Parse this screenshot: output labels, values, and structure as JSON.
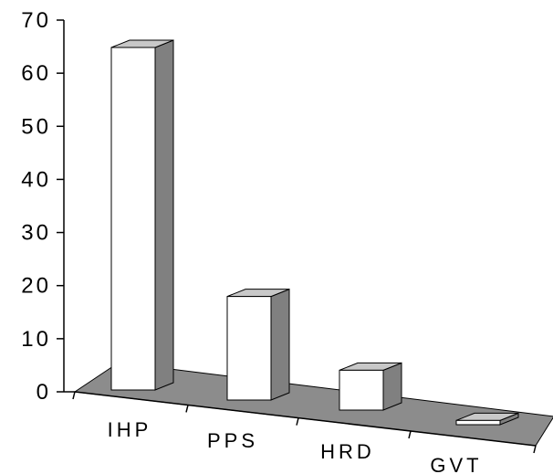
{
  "chart_data": {
    "type": "bar",
    "style": "3d-column",
    "categories": [
      "IHP",
      "PPS",
      "HRD",
      "GVT"
    ],
    "values": [
      64.5,
      19.5,
      7.5,
      0.8
    ],
    "title": "",
    "xlabel": "",
    "ylabel": "",
    "ylim": [
      0,
      70
    ],
    "y_ticks": [
      0,
      10,
      20,
      30,
      40,
      50,
      60,
      70
    ],
    "grid": false,
    "legend": "none",
    "colors": {
      "bar_front": "#ffffff",
      "bar_top": "#c8c8c8",
      "bar_side": "#808080",
      "floor": "#8c8c8c",
      "axis": "#000000"
    }
  }
}
